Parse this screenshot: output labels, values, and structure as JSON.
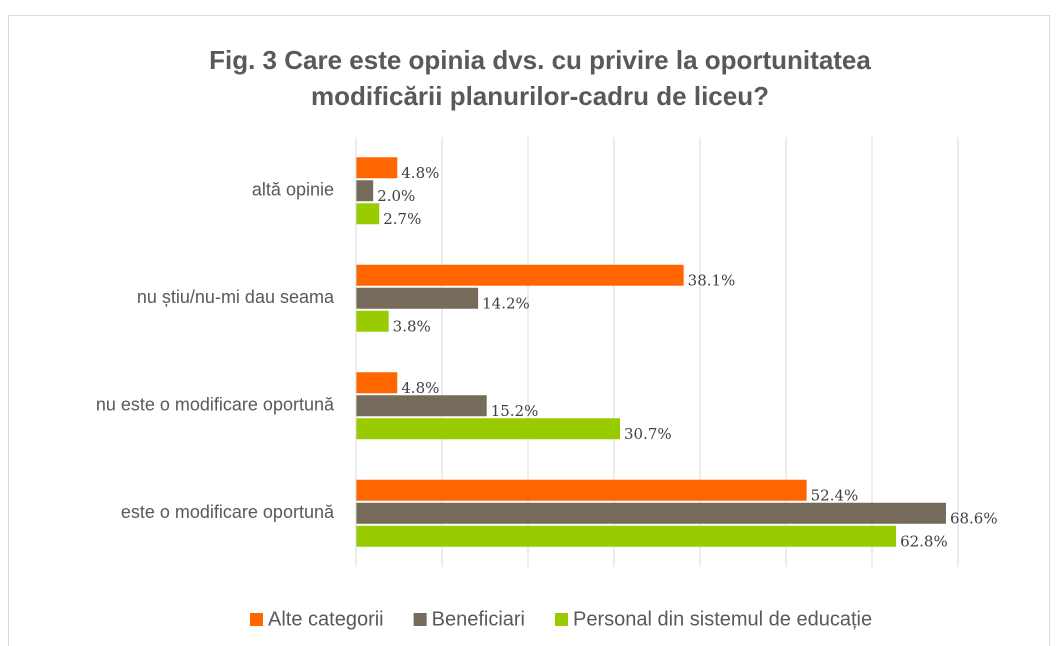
{
  "chart_data": {
    "type": "hbar",
    "title": [
      "Fig. 3 Care este opinia dvs. cu privire la oportunitatea",
      "modificării planurilor-cadru de liceu?"
    ],
    "categories": [
      "altă opinie",
      "nu știu/nu-mi dau seama",
      "nu este o modificare oportună",
      "este o modificare oportună"
    ],
    "series": [
      {
        "name": "Alte categorii",
        "color": "#ff6600",
        "values": [
          4.8,
          38.1,
          4.8,
          52.4
        ],
        "value_labels": [
          "4.8%",
          "38.1%",
          "4.8%",
          "52.4%"
        ]
      },
      {
        "name": "Beneficiari",
        "color": "#766a5a",
        "values": [
          2.0,
          14.2,
          15.2,
          68.6
        ],
        "value_labels": [
          "2.0%",
          "14.2%",
          "15.2%",
          "68.6%"
        ]
      },
      {
        "name": "Personal din sistemul de educație",
        "color": "#99cc00",
        "values": [
          2.7,
          3.8,
          30.7,
          62.8
        ],
        "value_labels": [
          "2.7%",
          "3.8%",
          "30.7%",
          "62.8%"
        ]
      }
    ],
    "xlim": [
      0,
      70
    ],
    "xticks": [
      0,
      10,
      20,
      30,
      40,
      50,
      60,
      70
    ],
    "grid": true,
    "legend": "bottom"
  }
}
